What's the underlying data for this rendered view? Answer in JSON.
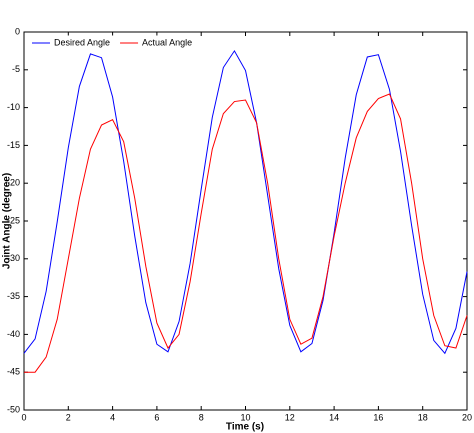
{
  "chart_data": {
    "type": "line",
    "x_label": "Time (s)",
    "y_label": "Joint Angle (degree)",
    "x": [
      0,
      0.5,
      1,
      1.5,
      2,
      2.5,
      3,
      3.5,
      4,
      4.5,
      5,
      5.5,
      6,
      6.5,
      7,
      7.5,
      8,
      8.5,
      9,
      9.5,
      10,
      10.5,
      11,
      11.5,
      12,
      12.5,
      13,
      13.5,
      14,
      14.5,
      15,
      15.5,
      16,
      16.5,
      17,
      17.5,
      18,
      18.5,
      19,
      19.5,
      20
    ],
    "series": [
      {
        "name": "Desired Angle",
        "color": "#0000ff",
        "values": [
          -42.5,
          -40.6,
          -34.3,
          -25.1,
          -15.3,
          -7.2,
          -2.9,
          -3.4,
          -8.6,
          -17.1,
          -27.0,
          -35.8,
          -41.3,
          -42.3,
          -38.3,
          -30.6,
          -20.8,
          -11.3,
          -4.7,
          -2.5,
          -5.1,
          -12.0,
          -21.6,
          -31.3,
          -38.8,
          -42.3,
          -41.2,
          -35.5,
          -26.6,
          -16.7,
          -8.3,
          -3.3,
          -3.0,
          -7.6,
          -15.8,
          -25.6,
          -34.7,
          -40.8,
          -42.5,
          -39.2,
          -31.7
        ]
      },
      {
        "name": "Actual Angle",
        "color": "#ff0000",
        "values": [
          -45,
          -45,
          -43,
          -38,
          -30,
          -22,
          -15.5,
          -12.3,
          -11.6,
          -14.5,
          -22,
          -31,
          -38.5,
          -41.8,
          -40,
          -33,
          -24,
          -15.5,
          -10.8,
          -9.2,
          -9.0,
          -12,
          -20,
          -30,
          -38,
          -41.3,
          -40.5,
          -35,
          -27,
          -20,
          -14,
          -10.5,
          -8.8,
          -8.2,
          -11.5,
          -20,
          -30,
          -37.5,
          -41.5,
          -41.8,
          -37.5
        ]
      }
    ],
    "xlim": [
      0,
      20
    ],
    "xticks": [
      0,
      2,
      4,
      6,
      8,
      10,
      12,
      14,
      16,
      18,
      20
    ],
    "ylim": [
      -50,
      0
    ],
    "yticks": [
      -50,
      -45,
      -40,
      -35,
      -30,
      -25,
      -20,
      -15,
      -10,
      -5,
      0
    ],
    "legend": "upper left"
  }
}
